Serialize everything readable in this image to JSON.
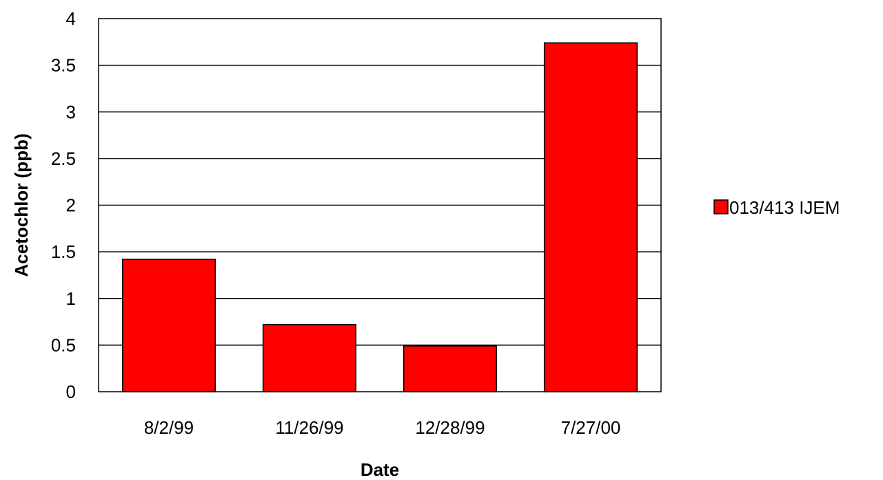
{
  "chart_data": {
    "type": "bar",
    "categories": [
      "8/2/99",
      "11/26/99",
      "12/28/99",
      "7/27/00"
    ],
    "series": [
      {
        "name": "013/413 IJEM",
        "values": [
          1.42,
          0.72,
          0.49,
          3.74
        ],
        "color": "#ff0000"
      }
    ],
    "xlabel": "Date",
    "ylabel": "Acetochlor (ppb)",
    "ylim": [
      0,
      4
    ],
    "yticks": [
      "0",
      "0.5",
      "1",
      "1.5",
      "2",
      "2.5",
      "3",
      "3.5",
      "4"
    ],
    "grid": true,
    "legend": "right"
  }
}
